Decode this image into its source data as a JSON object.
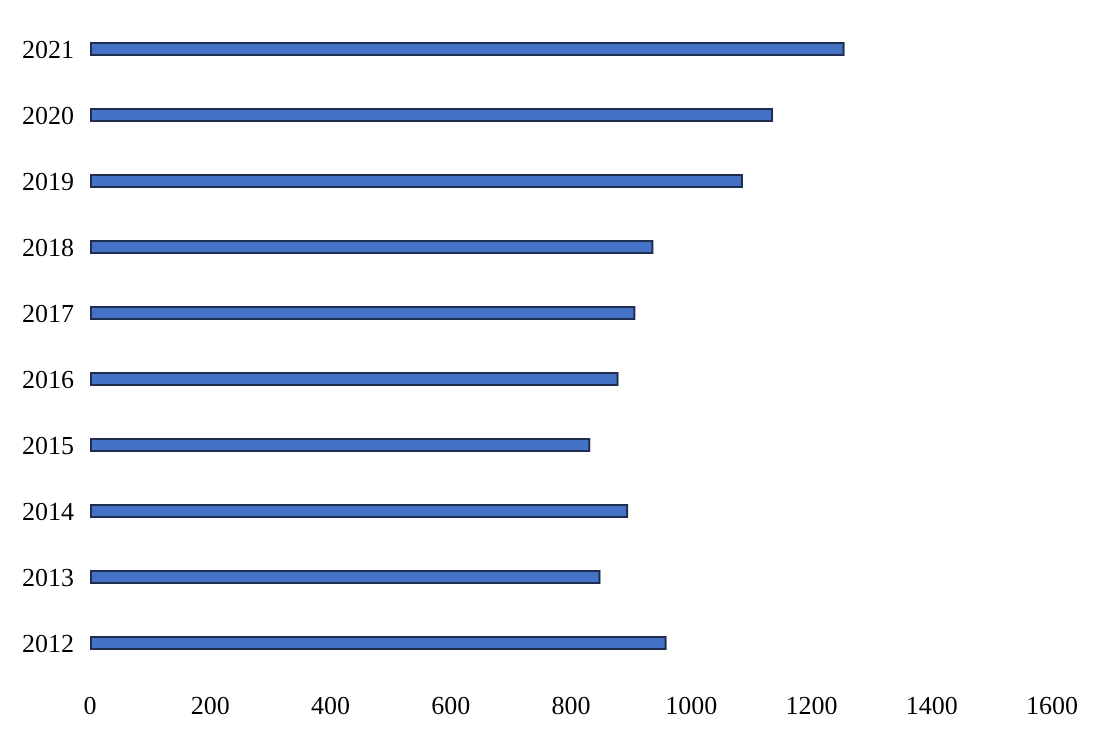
{
  "chart_data": {
    "type": "bar",
    "orientation": "horizontal",
    "categories": [
      "2021",
      "2020",
      "2019",
      "2018",
      "2017",
      "2016",
      "2015",
      "2014",
      "2013",
      "2012"
    ],
    "values": [
      1255,
      1136,
      1086,
      937,
      907,
      879,
      832,
      895,
      849,
      959
    ],
    "color": "#4472c4",
    "xlim": [
      0,
      1600
    ],
    "xticks": [
      0,
      200,
      400,
      600,
      800,
      1000,
      1200,
      1400,
      1600
    ],
    "grid": false
  }
}
